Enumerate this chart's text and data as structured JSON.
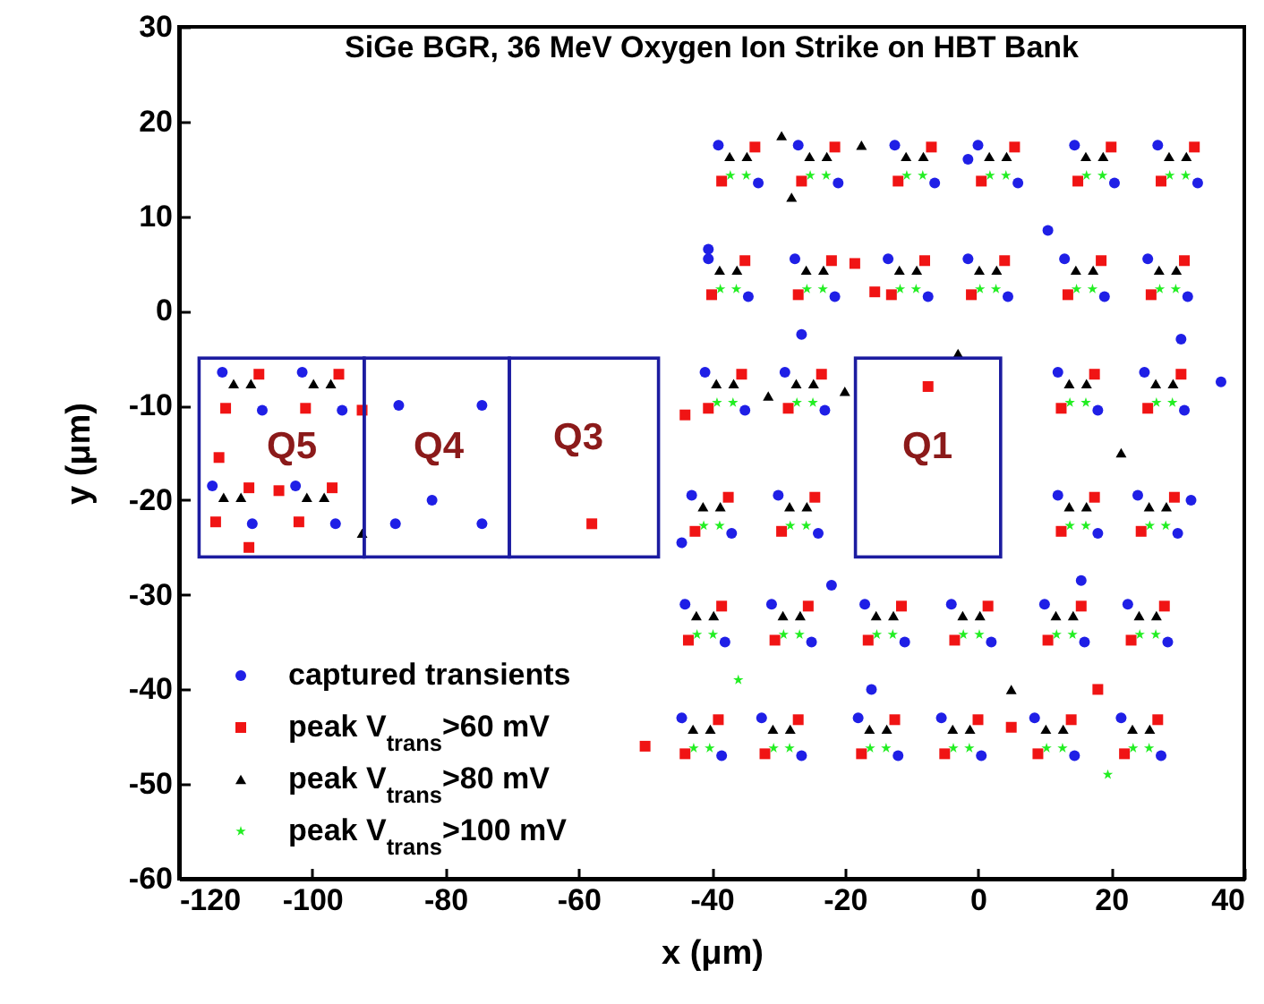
{
  "chart_data": {
    "type": "scatter",
    "title": "SiGe BGR, 36 MeV Oxygen Ion Strike on HBT Bank",
    "xlabel": "x (μm)",
    "ylabel": "y (μm)",
    "xlim": [
      -120,
      40
    ],
    "ylim": [
      -60,
      30
    ],
    "xticks": [
      -120,
      -100,
      -80,
      -60,
      -40,
      -20,
      0,
      20,
      40
    ],
    "yticks": [
      -60,
      -50,
      -40,
      -30,
      -20,
      -10,
      0,
      10,
      20,
      30
    ],
    "legend": "bottom left",
    "annotations": [
      "Q5",
      "Q4",
      "Q3",
      "Q1"
    ],
    "series": [
      {
        "name": "captured transients",
        "color": "#1f1fe6",
        "marker": "circle",
        "x": [
          -39,
          -33,
          -27,
          -21,
          -12.5,
          -6.5,
          0,
          6,
          14.5,
          20.5,
          27,
          33,
          -40.5,
          -34.5,
          -27.5,
          -21.5,
          -13.5,
          -7.5,
          -1.5,
          4.5,
          13,
          19,
          25.5,
          31.5,
          -41,
          -35,
          -29,
          -23,
          12,
          18,
          25,
          31,
          -43,
          -37,
          -30,
          -24,
          12,
          18,
          24,
          30,
          -44,
          -38,
          -31,
          -25,
          -17,
          -11,
          -4,
          2,
          10,
          16,
          22.5,
          28.5,
          -44.5,
          -38.5,
          -32.5,
          -26.5,
          -18,
          -12,
          -5.5,
          0.5,
          8.5,
          14.5,
          21.5,
          27.5,
          -113.5,
          -107.5,
          -101.5,
          -95.5,
          -115,
          -109,
          -102.5,
          -96.5,
          -87,
          -74.5,
          -87.5,
          -74.5,
          -82,
          10.5,
          30.5,
          36.5,
          -22,
          15.5,
          -16,
          32,
          -44.5,
          -40.5,
          -1.5,
          -26.5
        ],
        "values": [
          17.5,
          13.5,
          17.5,
          13.5,
          17.5,
          13.5,
          17.5,
          13.5,
          17.5,
          13.5,
          17.5,
          13.5,
          5.5,
          1.5,
          5.5,
          1.5,
          5.5,
          1.5,
          5.5,
          1.5,
          5.5,
          1.5,
          5.5,
          1.5,
          -6.5,
          -10.5,
          -6.5,
          -10.5,
          -6.5,
          -10.5,
          -6.5,
          -10.5,
          -19.5,
          -23.5,
          -19.5,
          -23.5,
          -19.5,
          -23.5,
          -19.5,
          -23.5,
          -31,
          -35,
          -31,
          -35,
          -31,
          -35,
          -31,
          -35,
          -31,
          -35,
          -31,
          -35,
          -43,
          -47,
          -43,
          -47,
          -43,
          -47,
          -43,
          -47,
          -43,
          -47,
          -43,
          -47,
          -6.5,
          -10.5,
          -6.5,
          -10.5,
          -18.5,
          -22.5,
          -18.5,
          -22.5,
          -10,
          -10,
          -22.5,
          -22.5,
          -20,
          8.5,
          -3,
          -7.5,
          -29,
          -28.5,
          -40,
          -20,
          -24.5,
          6.5,
          16,
          -2.5
        ]
      },
      {
        "name": "peak V$_{trans}$>60 mV",
        "color": "#f01414",
        "marker": "square",
        "x": [
          -33.5,
          -38.5,
          -21.5,
          -26.5,
          -7,
          -12,
          5.5,
          0.5,
          20,
          15,
          32.5,
          27.5,
          -35,
          -40,
          -22,
          -27,
          -8,
          -13,
          4,
          -1,
          18.5,
          13.5,
          31,
          26,
          -35.5,
          -40.5,
          -23.5,
          -28.5,
          17.5,
          12.5,
          30.5,
          25.5,
          -37.5,
          -42.5,
          -24.5,
          -29.5,
          17.5,
          12.5,
          29.5,
          24.5,
          -38.5,
          -43.5,
          -25.5,
          -30.5,
          -11.5,
          -16.5,
          1.5,
          -3.5,
          15.5,
          10.5,
          28,
          23,
          -39,
          -44,
          -27,
          -32,
          -12.5,
          -17.5,
          0,
          -5,
          14,
          9,
          27,
          22,
          -108,
          -113,
          -96,
          -101,
          -109.5,
          -114.5,
          -97,
          -102,
          -58,
          -7.5,
          -44,
          18,
          5,
          -50,
          -92.5,
          -114,
          -105,
          -109.5,
          -18.5,
          -15.5
        ],
        "values": [
          17.3,
          13.7,
          17.3,
          13.7,
          17.3,
          13.7,
          17.3,
          13.7,
          17.3,
          13.7,
          17.3,
          13.7,
          5.3,
          1.7,
          5.3,
          1.7,
          5.3,
          1.7,
          5.3,
          1.7,
          5.3,
          1.7,
          5.3,
          1.7,
          -6.7,
          -10.3,
          -6.7,
          -10.3,
          -6.7,
          -10.3,
          -6.7,
          -10.3,
          -19.7,
          -23.3,
          -19.7,
          -23.3,
          -19.7,
          -23.3,
          -19.7,
          -23.3,
          -31.2,
          -34.8,
          -31.2,
          -34.8,
          -31.2,
          -34.8,
          -31.2,
          -34.8,
          -31.2,
          -34.8,
          -31.2,
          -34.8,
          -43.2,
          -46.8,
          -43.2,
          -46.8,
          -43.2,
          -46.8,
          -43.2,
          -46.8,
          -43.2,
          -46.8,
          -43.2,
          -46.8,
          -6.7,
          -10.3,
          -6.7,
          -10.3,
          -18.7,
          -22.3,
          -18.7,
          -22.3,
          -22.5,
          -8,
          -11,
          -40,
          -44,
          -46,
          -10.5,
          -15.5,
          -19,
          -25,
          5,
          2
        ]
      },
      {
        "name": "peak V$_{trans}$>80 mV",
        "color": "#000000",
        "marker": "triangle",
        "x": [
          -37.3,
          -34.7,
          -25.3,
          -22.7,
          -10.8,
          -8.2,
          1.7,
          4.3,
          16.2,
          18.8,
          28.7,
          31.3,
          -38.8,
          -36.2,
          -25.8,
          -23.2,
          -11.8,
          -9.2,
          0.2,
          2.8,
          14.7,
          17.3,
          27.2,
          29.8,
          -39.3,
          -36.7,
          -27.3,
          -24.7,
          13.7,
          16.3,
          26.7,
          29.3,
          -41.3,
          -38.7,
          -28.3,
          -25.7,
          13.7,
          16.3,
          25.7,
          28.3,
          -42.3,
          -39.7,
          -29.3,
          -26.7,
          -15.3,
          -12.7,
          -2.3,
          0.3,
          11.7,
          14.3,
          24.2,
          26.8,
          -42.8,
          -40.2,
          -30.8,
          -28.2,
          -16.3,
          -13.7,
          -3.8,
          -1.2,
          10.2,
          12.8,
          23.2,
          25.8,
          -111.8,
          -109.2,
          -99.8,
          -97.2,
          -113.3,
          -110.7,
          -100.8,
          -98.2,
          -3,
          21.5,
          -29.5,
          -17.5,
          5,
          -92.5,
          -28,
          -31.5,
          -20
        ],
        "values": [
          16.3,
          16.3,
          16.3,
          16.3,
          16.3,
          16.3,
          16.3,
          16.3,
          16.3,
          16.3,
          16.3,
          16.3,
          4.3,
          4.3,
          4.3,
          4.3,
          4.3,
          4.3,
          4.3,
          4.3,
          4.3,
          4.3,
          4.3,
          4.3,
          -7.7,
          -7.7,
          -7.7,
          -7.7,
          -7.7,
          -7.7,
          -7.7,
          -7.7,
          -20.7,
          -20.7,
          -20.7,
          -20.7,
          -20.7,
          -20.7,
          -20.7,
          -20.7,
          -32.2,
          -32.2,
          -32.2,
          -32.2,
          -32.2,
          -32.2,
          -32.2,
          -32.2,
          -32.2,
          -32.2,
          -32.2,
          -32.2,
          -44.2,
          -44.2,
          -44.2,
          -44.2,
          -44.2,
          -44.2,
          -44.2,
          -44.2,
          -44.2,
          -44.2,
          -44.2,
          -44.2,
          -7.7,
          -7.7,
          -7.7,
          -7.7,
          -19.7,
          -19.7,
          -19.7,
          -19.7,
          -4.5,
          -15,
          18.5,
          17.5,
          -40,
          -23.5,
          12,
          -9,
          -8.5
        ]
      },
      {
        "name": "peak V$_{trans}$>100 mV",
        "color": "#22ee22",
        "marker": "star",
        "x": [
          -37.2,
          -34.8,
          -25.2,
          -22.8,
          -10.7,
          -8.3,
          1.8,
          4.2,
          16.3,
          18.7,
          28.8,
          31.2,
          -38.7,
          -36.3,
          -25.7,
          -23.3,
          -11.7,
          -9.3,
          0.3,
          2.7,
          14.8,
          17.2,
          27.3,
          29.7,
          -39.2,
          -36.8,
          -27.2,
          -24.8,
          13.8,
          16.2,
          26.8,
          29.2,
          -41.2,
          -38.8,
          -28.2,
          -25.8,
          13.8,
          16.2,
          25.8,
          28.2,
          -42.2,
          -39.8,
          -29.2,
          -26.8,
          -15.2,
          -12.8,
          -2.2,
          0.2,
          11.8,
          14.2,
          24.3,
          26.7,
          -42.7,
          -40.3,
          -30.7,
          -28.3,
          -16.2,
          -13.8,
          -3.7,
          -1.3,
          10.3,
          12.7,
          23.3,
          25.7,
          -36,
          19.5
        ],
        "values": [
          14.3,
          14.3,
          14.3,
          14.3,
          14.3,
          14.3,
          14.3,
          14.3,
          14.3,
          14.3,
          14.3,
          14.3,
          2.3,
          2.3,
          2.3,
          2.3,
          2.3,
          2.3,
          2.3,
          2.3,
          2.3,
          2.3,
          2.3,
          2.3,
          -9.7,
          -9.7,
          -9.7,
          -9.7,
          -9.7,
          -9.7,
          -9.7,
          -9.7,
          -22.7,
          -22.7,
          -22.7,
          -22.7,
          -22.7,
          -22.7,
          -22.7,
          -22.7,
          -34.2,
          -34.2,
          -34.2,
          -34.2,
          -34.2,
          -34.2,
          -34.2,
          -34.2,
          -34.2,
          -34.2,
          -34.2,
          -34.2,
          -46.2,
          -46.2,
          -46.2,
          -46.2,
          -46.2,
          -46.2,
          -46.2,
          -46.2,
          -46.2,
          -46.2,
          -46.2,
          -46.2,
          -39,
          -49
        ]
      }
    ]
  }
}
